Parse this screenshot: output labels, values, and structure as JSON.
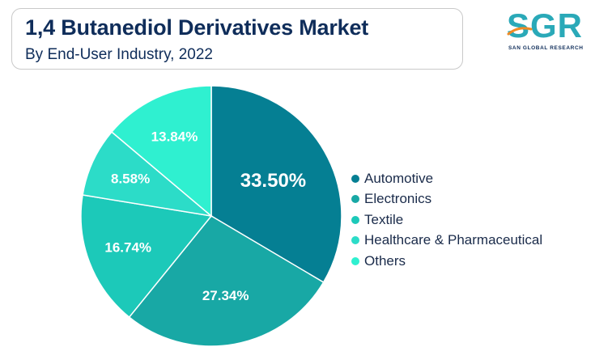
{
  "header": {
    "title": "1,4 Butanediol Derivatives Market",
    "subtitle": "By End-User Industry, 2022"
  },
  "logo": {
    "letters": "SGR",
    "tagline": "SAN GLOBAL RESEARCH"
  },
  "colors": {
    "title": "#0f2d5a",
    "automotive": "#057f93",
    "electronics": "#18a8a5",
    "textile": "#1cc9b9",
    "healthcare": "#2cdcc8",
    "others": "#2ff0d0",
    "logo": "#2aa9b8"
  },
  "chart_data": {
    "type": "pie",
    "title": "1,4 Butanediol Derivatives Market",
    "subtitle": "By End-User Industry, 2022",
    "categories": [
      "Automotive",
      "Electronics",
      "Textile",
      "Healthcare & Pharmaceutical",
      "Others"
    ],
    "values": [
      33.5,
      27.34,
      16.74,
      8.58,
      13.84
    ],
    "labels": [
      "33.50%",
      "27.34%",
      "16.74%",
      "8.58%",
      "13.84%"
    ],
    "legend_position": "right"
  }
}
